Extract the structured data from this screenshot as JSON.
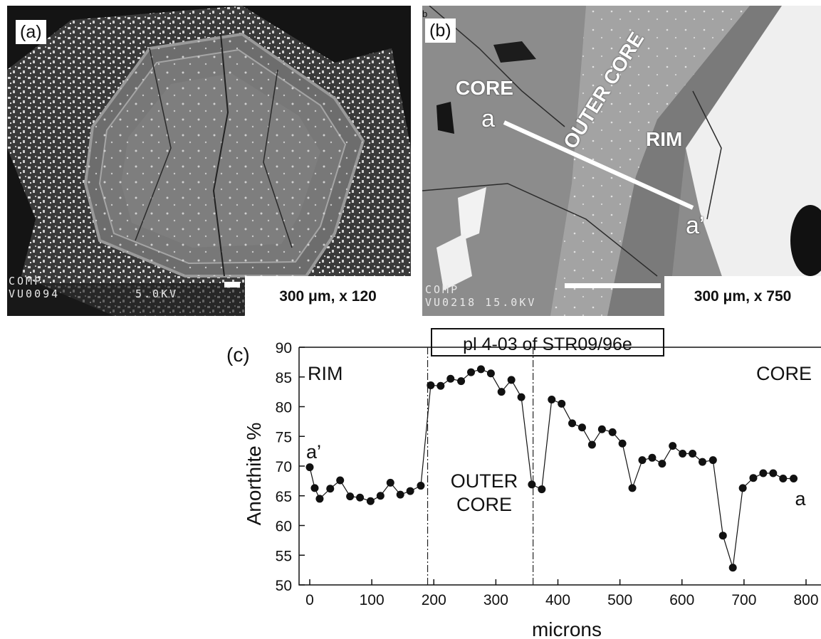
{
  "panel_a": {
    "label": "(a)",
    "sem_line1": "COMP",
    "sem_line2": "VU0094",
    "sem_line3": "5.0KV",
    "scale": "300 μm, x 120"
  },
  "panel_b": {
    "label": "(b)",
    "corner_mark": "b",
    "zone_core": "CORE",
    "zone_outer_core": "OUTER CORE",
    "zone_rim": "RIM",
    "point_a": "a",
    "point_a_prime": "a’",
    "sem_line1": "COMP",
    "sem_line2": "VU0218 15.0KV",
    "scale": "300 μm, x 750"
  },
  "panel_c": {
    "label": "(c)"
  },
  "chart_data": {
    "type": "scatter",
    "title": "pl 4-03 of STR09/96e",
    "xlabel": "microns",
    "ylabel": "Anorthite %",
    "xlim": [
      0,
      800
    ],
    "ylim": [
      50,
      90
    ],
    "xticks": [
      0,
      100,
      200,
      300,
      400,
      500,
      600,
      700,
      800
    ],
    "xtick_labels": [
      "0",
      "100",
      "200",
      "300",
      "400",
      "500",
      "600",
      "700",
      "800"
    ],
    "yticks": [
      50,
      55,
      60,
      65,
      70,
      75,
      80,
      85,
      90
    ],
    "grid": false,
    "zone_boundaries": [
      190,
      360
    ],
    "annotations": {
      "rim": "RIM",
      "core": "CORE",
      "outer_core_line1": "OUTER",
      "outer_core_line2": "CORE",
      "a_prime": "a’",
      "a": "a"
    },
    "series": [
      {
        "x": [
          0,
          8,
          16,
          33,
          49,
          65,
          81,
          98,
          114,
          130,
          146,
          162,
          179,
          195,
          211,
          227,
          244,
          260,
          276,
          292,
          309,
          325,
          341,
          358,
          374,
          390,
          406,
          423,
          439,
          455,
          471,
          488,
          504,
          520,
          536,
          552,
          568,
          585,
          601,
          617,
          633,
          650,
          666,
          682,
          698,
          715,
          731,
          747,
          763,
          780
        ],
        "y": [
          69.8,
          66.3,
          64.5,
          66.2,
          67.6,
          64.9,
          64.7,
          64.1,
          65.0,
          67.2,
          65.2,
          65.8,
          66.7,
          83.6,
          83.5,
          84.7,
          84.3,
          85.8,
          86.3,
          85.6,
          82.5,
          84.5,
          81.6,
          66.9,
          66.1,
          81.2,
          80.5,
          77.2,
          76.5,
          73.6,
          76.2,
          75.7,
          73.8,
          66.3,
          71.0,
          71.4,
          70.4,
          73.4,
          72.1,
          72.1,
          70.7,
          71.0,
          58.3,
          52.9,
          66.3,
          68.0,
          68.8,
          68.8,
          67.9,
          67.9
        ]
      }
    ]
  }
}
